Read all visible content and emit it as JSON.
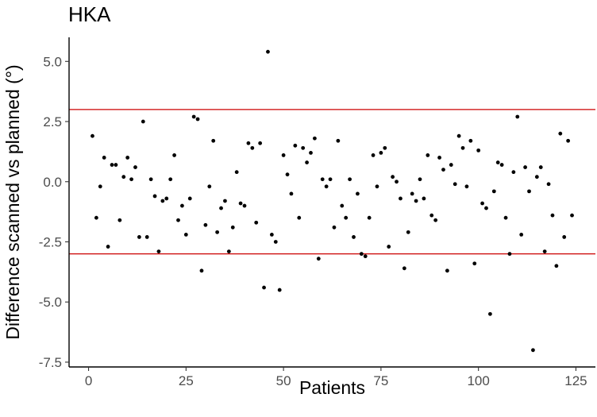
{
  "chart_data": {
    "type": "scatter",
    "title": "HKA",
    "xlabel": "Patients",
    "ylabel": "Difference scanned vs planned (°)",
    "xlim": [
      -5,
      130
    ],
    "ylim": [
      -7.7,
      6.0
    ],
    "x_ticks": [
      0,
      25,
      50,
      75,
      100,
      125
    ],
    "x_tick_labels": [
      "0",
      "25",
      "50",
      "75",
      "100",
      "125"
    ],
    "y_ticks": [
      5.0,
      2.5,
      0.0,
      -2.5,
      -5.0,
      -7.5
    ],
    "y_tick_labels": [
      "5.0",
      "2.5",
      "0.0",
      "-2.5",
      "-5.0",
      "-7.5"
    ],
    "reference_lines": [
      3,
      -3
    ],
    "colors": {
      "points": "#000000",
      "reference_line": "#cc0000",
      "axis": "#000000"
    },
    "grid": false,
    "series": [
      {
        "x": [
          1,
          2,
          3,
          4,
          5,
          6,
          7,
          8,
          9,
          10,
          11,
          12,
          13,
          14,
          15,
          16,
          17,
          18,
          19,
          20,
          21,
          22,
          23,
          24,
          25,
          26,
          27,
          28,
          29,
          30,
          31,
          32,
          33,
          34,
          35,
          36,
          37,
          38,
          39,
          40,
          41,
          42,
          43,
          44,
          45,
          46,
          47,
          48,
          49,
          50,
          51,
          52,
          53,
          54,
          55,
          56,
          57,
          58,
          59,
          60,
          61,
          62,
          63,
          64,
          65,
          66,
          67,
          68,
          69,
          70,
          71,
          72,
          73,
          74,
          75,
          76,
          77,
          78,
          79,
          80,
          81,
          82,
          83,
          84,
          85,
          86,
          87,
          88,
          89,
          90,
          91,
          92,
          93,
          94,
          95,
          96,
          97,
          98,
          99,
          100,
          101,
          102,
          103,
          104,
          105,
          106,
          107,
          108,
          109,
          110,
          111,
          112,
          113,
          114,
          115,
          116,
          117,
          118,
          119,
          120,
          121,
          122,
          123,
          124
        ],
        "y": [
          1.9,
          -1.5,
          -0.2,
          1.0,
          -2.7,
          0.7,
          0.7,
          -1.6,
          0.2,
          1.0,
          0.1,
          0.6,
          -2.3,
          2.5,
          -2.3,
          0.1,
          -0.6,
          -2.9,
          -0.8,
          -0.7,
          0.1,
          1.1,
          -1.6,
          -1.0,
          -2.2,
          -0.7,
          2.7,
          2.6,
          -3.7,
          -1.8,
          -0.2,
          1.7,
          -2.1,
          -1.1,
          -0.8,
          -2.9,
          -1.9,
          0.4,
          -0.9,
          -1.0,
          1.6,
          1.4,
          -1.7,
          1.6,
          -4.4,
          5.4,
          -2.2,
          -2.5,
          -4.5,
          1.1,
          0.3,
          -0.5,
          1.5,
          -1.5,
          1.4,
          0.8,
          1.2,
          1.8,
          -3.2,
          0.1,
          -0.2,
          0.1,
          -1.9,
          1.7,
          -1.0,
          -1.5,
          0.1,
          -2.3,
          -0.5,
          -3.0,
          -3.1,
          -1.5,
          1.1,
          -0.2,
          1.2,
          1.4,
          -2.7,
          0.2,
          0.0,
          -0.7,
          -3.6,
          -2.1,
          -0.5,
          -0.8,
          0.1,
          -0.7,
          1.1,
          -1.4,
          -1.6,
          1.0,
          0.5,
          -3.7,
          0.7,
          -0.1,
          1.9,
          1.4,
          -0.2,
          1.7,
          -3.4,
          1.3,
          -0.9,
          -1.1,
          -5.5,
          -0.4,
          0.8,
          0.7,
          -1.5,
          -3.0,
          0.4,
          2.7,
          -2.2,
          0.6,
          -0.4,
          -7.0,
          0.2,
          0.6,
          -2.9,
          -0.1,
          -1.4,
          -3.5,
          2.0,
          -2.3,
          1.7,
          -1.4
        ]
      }
    ]
  }
}
